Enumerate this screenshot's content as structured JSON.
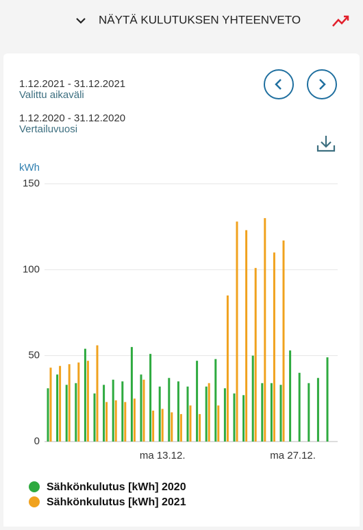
{
  "header": {
    "toggle": "NÄYTÄ KULUTUKSEN YHTEENVETO"
  },
  "period": {
    "selected_range": "1.12.2021 - 31.12.2021",
    "selected_label": "Valittu aikaväli",
    "compare_range": "1.12.2020 - 31.12.2020",
    "compare_label": "Vertailuvuosi"
  },
  "chart_data": {
    "type": "bar",
    "y_label": "kWh",
    "categories": [
      null,
      null,
      null,
      null,
      null,
      null,
      null,
      null,
      null,
      null,
      null,
      null,
      "ma 13.12.",
      null,
      null,
      null,
      null,
      null,
      null,
      null,
      null,
      null,
      null,
      null,
      null,
      null,
      "ma 27.12.",
      null,
      null,
      null,
      null
    ],
    "series": [
      {
        "name": "Sähkönkulutus [kWh] 2020",
        "color": "#2eaa3f",
        "values": [
          31,
          39,
          33,
          34,
          54,
          28,
          33,
          36,
          35,
          55,
          39,
          51,
          32,
          37,
          35,
          32,
          47,
          32,
          48,
          31,
          28,
          27,
          50,
          34,
          34,
          33,
          53,
          40,
          34,
          37,
          49
        ]
      },
      {
        "name": "Sähkönkulutus [kWh] 2021",
        "color": "#f0a21e",
        "values": [
          43,
          44,
          45,
          46,
          47,
          56,
          23,
          24,
          23,
          25,
          36,
          18,
          19,
          17,
          16,
          21,
          16,
          34,
          21,
          85,
          128,
          123,
          101,
          130,
          110,
          117,
          null,
          null,
          null,
          null,
          null
        ]
      }
    ],
    "ylim": [
      0,
      150
    ],
    "yticks": [
      0,
      50,
      100,
      150
    ],
    "grid": true
  }
}
